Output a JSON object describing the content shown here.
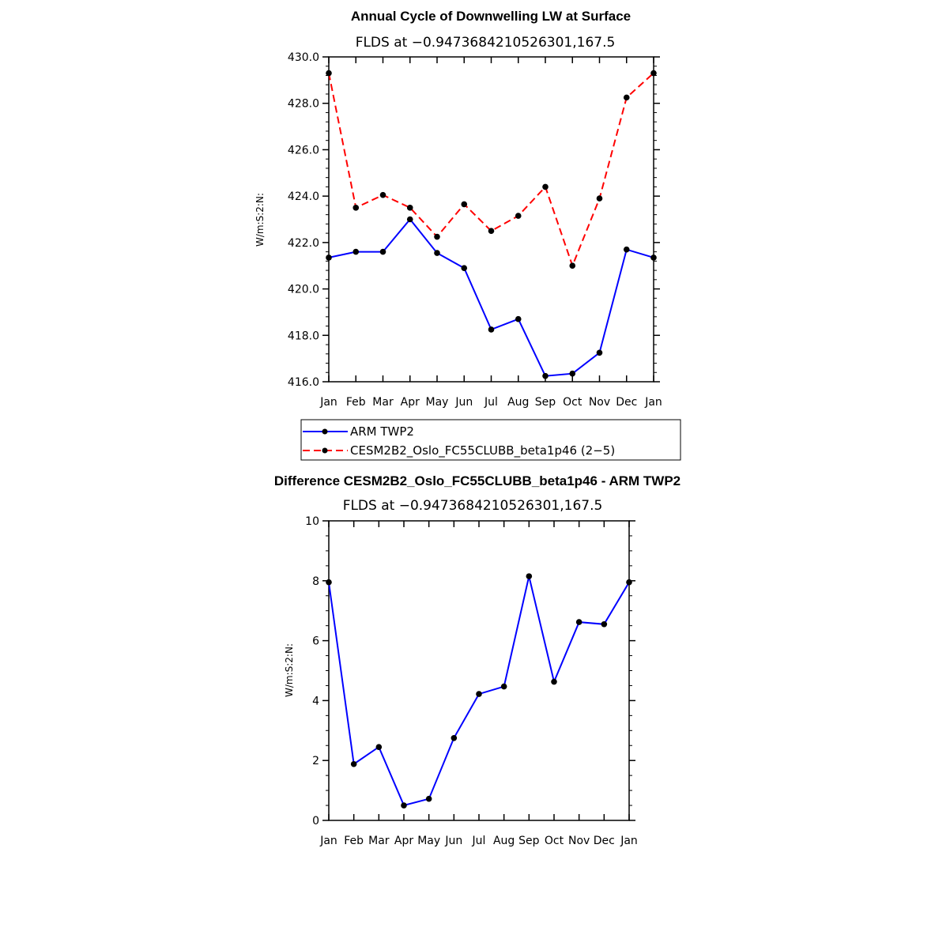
{
  "chart_data": [
    {
      "type": "line",
      "title": "Annual Cycle of Downwelling LW at Surface",
      "subtitle": "FLDS at −0.9473684210526301,167.5",
      "ylabel": "W/m:S:2:N:",
      "categories": [
        "Jan",
        "Feb",
        "Mar",
        "Apr",
        "May",
        "Jun",
        "Jul",
        "Aug",
        "Sep",
        "Oct",
        "Nov",
        "Dec",
        "Jan"
      ],
      "ylim": [
        416.0,
        430.0
      ],
      "yticks": [
        "416.0",
        "418.0",
        "420.0",
        "422.0",
        "424.0",
        "426.0",
        "428.0",
        "430.0"
      ],
      "series": [
        {
          "name": "ARM TWP2",
          "color": "#0000ff",
          "dash": false,
          "values": [
            421.35,
            421.6,
            421.6,
            423.0,
            421.55,
            420.9,
            418.25,
            418.7,
            416.25,
            416.35,
            417.25,
            421.7,
            421.35
          ]
        },
        {
          "name": "CESM2B2_Oslo_FC55CLUBB_beta1p46 (2−5)",
          "color": "#ff0000",
          "dash": true,
          "values": [
            429.3,
            423.5,
            424.05,
            423.5,
            422.25,
            423.65,
            422.5,
            423.15,
            424.4,
            421.0,
            423.9,
            428.25,
            429.3
          ]
        }
      ],
      "legend": "below"
    },
    {
      "type": "line",
      "title": "Difference CESM2B2_Oslo_FC55CLUBB_beta1p46 - ARM TWP2",
      "subtitle": "FLDS at −0.9473684210526301,167.5",
      "ylabel": "W/m:S:2:N:",
      "categories": [
        "Jan",
        "Feb",
        "Mar",
        "Apr",
        "May",
        "Jun",
        "Jul",
        "Aug",
        "Sep",
        "Oct",
        "Nov",
        "Dec",
        "Jan"
      ],
      "ylim": [
        0,
        10
      ],
      "yticks": [
        "0",
        "2",
        "4",
        "6",
        "8",
        "10"
      ],
      "series": [
        {
          "color": "#0000ff",
          "dash": false,
          "values": [
            7.95,
            1.88,
            2.45,
            0.5,
            0.72,
            2.75,
            4.22,
            4.47,
            8.15,
            4.63,
            6.62,
            6.55,
            7.95
          ]
        }
      ]
    }
  ]
}
